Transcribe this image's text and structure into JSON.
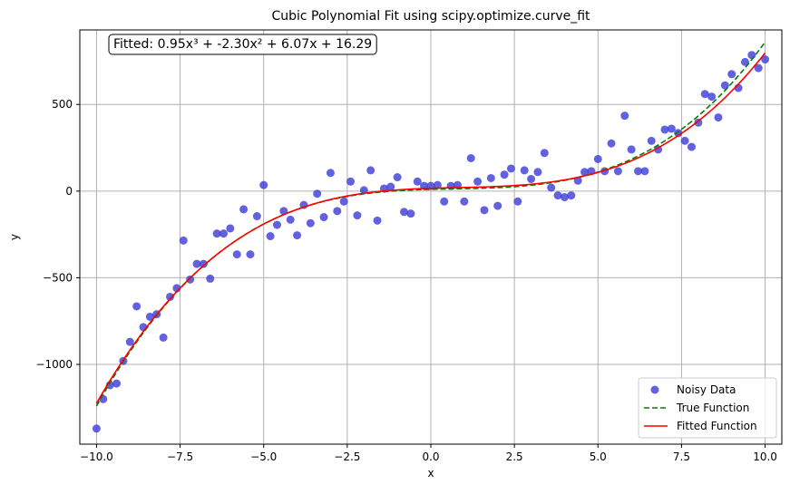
{
  "chart_data": {
    "type": "scatter",
    "title": "Cubic Polynomial Fit using scipy.optimize.curve_fit",
    "xlabel": "x",
    "ylabel": "y",
    "xlim": [
      -10.5,
      10.5
    ],
    "ylim": [
      -1460,
      930
    ],
    "xticks": [
      -10.0,
      -7.5,
      -5.0,
      -2.5,
      0.0,
      2.5,
      5.0,
      7.5,
      10.0
    ],
    "xtick_labels": [
      "−10.0",
      "−7.5",
      "−5.0",
      "−2.5",
      "0.0",
      "2.5",
      "5.0",
      "7.5",
      "10.0"
    ],
    "yticks": [
      -1000,
      -500,
      0,
      500
    ],
    "ytick_labels": [
      "−1000",
      "−500",
      "0",
      "500"
    ],
    "grid": true,
    "legend_position": "bottom-right",
    "annotation": "Fitted: 0.95x³ + -2.30x² + 6.07x + 16.29",
    "series": [
      {
        "name": "Noisy Data",
        "kind": "scatter",
        "color": "#3b3bd9",
        "x": [
          -10.0,
          -9.8,
          -9.6,
          -9.4,
          -9.2,
          -9.0,
          -8.8,
          -8.6,
          -8.4,
          -8.2,
          -8.0,
          -7.8,
          -7.6,
          -7.4,
          -7.2,
          -7.0,
          -6.8,
          -6.6,
          -6.4,
          -6.2,
          -6.0,
          -5.8,
          -5.6,
          -5.4,
          -5.2,
          -5.0,
          -4.8,
          -4.6,
          -4.4,
          -4.2,
          -4.0,
          -3.8,
          -3.6,
          -3.4,
          -3.2,
          -3.0,
          -2.8,
          -2.6,
          -2.4,
          -2.2,
          -2.0,
          -1.8,
          -1.6,
          -1.4,
          -1.2,
          -1.0,
          -0.8,
          -0.6,
          -0.4,
          -0.2,
          0.0,
          0.2,
          0.4,
          0.6,
          0.8,
          1.0,
          1.2,
          1.4,
          1.6,
          1.8,
          2.0,
          2.2,
          2.4,
          2.6,
          2.8,
          3.0,
          3.2,
          3.4,
          3.6,
          3.8,
          4.0,
          4.2,
          4.4,
          4.6,
          4.8,
          5.0,
          5.2,
          5.4,
          5.6,
          5.8,
          6.0,
          6.2,
          6.4,
          6.6,
          6.8,
          7.0,
          7.2,
          7.4,
          7.6,
          7.8,
          8.0,
          8.2,
          8.4,
          8.6,
          8.8,
          9.0,
          9.2,
          9.4,
          9.6,
          9.8,
          10.0
        ],
        "y": [
          -1370,
          -1200,
          -1120,
          -1110,
          -980,
          -870,
          -665,
          -785,
          -725,
          -710,
          -845,
          -610,
          -560,
          -285,
          -510,
          -420,
          -420,
          -505,
          -245,
          -245,
          -215,
          -365,
          -105,
          -365,
          -145,
          35,
          -260,
          -195,
          -115,
          -165,
          -255,
          -80,
          -185,
          -15,
          -150,
          105,
          -115,
          -60,
          55,
          -140,
          5,
          120,
          -170,
          15,
          25,
          80,
          -120,
          -130,
          55,
          30,
          30,
          35,
          -60,
          30,
          35,
          -60,
          190,
          55,
          -110,
          75,
          -85,
          95,
          130,
          -60,
          120,
          70,
          110,
          220,
          20,
          -25,
          -35,
          -25,
          60,
          110,
          115,
          185,
          115,
          275,
          115,
          435,
          240,
          115,
          115,
          290,
          240,
          355,
          360,
          335,
          290,
          255,
          395,
          560,
          545,
          425,
          610,
          675,
          595,
          745,
          785,
          710,
          760
        ]
      },
      {
        "name": "True Function",
        "kind": "line",
        "style": "dashed",
        "color": "#008000",
        "coefficients": [
          1,
          -2,
          5,
          10
        ]
      },
      {
        "name": "Fitted Function",
        "kind": "line",
        "style": "solid",
        "color": "#ff0000",
        "coefficients": [
          0.95,
          -2.3,
          6.07,
          16.29
        ]
      }
    ]
  }
}
